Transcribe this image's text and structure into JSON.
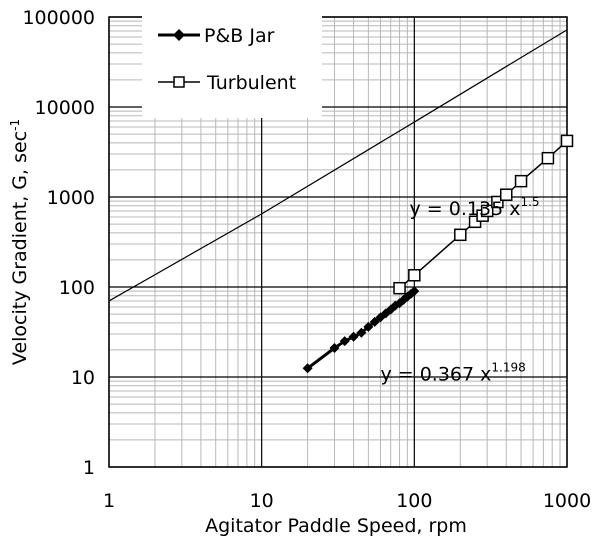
{
  "chart_data": {
    "type": "scatter",
    "xscale": "log",
    "yscale": "log",
    "xlim": [
      1,
      1000
    ],
    "ylim": [
      1,
      100000
    ],
    "xlabel": "Agitator Paddle Speed, rpm",
    "ylabel": "Velocity Gradient, G, sec",
    "ylabel_sup": "-1",
    "xticks": [
      "1",
      "10",
      "100",
      "1000"
    ],
    "yticks": [
      "1",
      "10",
      "100",
      "1000",
      "10000",
      "100000"
    ],
    "grid": "major and minor",
    "legend_position": "top-left",
    "series": [
      {
        "name": "P&B Jar",
        "style": "line-with-filled-diamonds",
        "color": "#000000",
        "x": [
          20,
          30,
          35,
          40,
          45,
          50,
          55,
          60,
          65,
          70,
          75,
          80,
          85,
          90,
          95,
          100
        ],
        "y": [
          12.5,
          21,
          25,
          28,
          31,
          36,
          41,
          46,
          51,
          56,
          62,
          66,
          72,
          78,
          84,
          90
        ]
      },
      {
        "name": "Turbulent",
        "style": "line-with-open-squares",
        "color": "#000000",
        "x": [
          80,
          100,
          200,
          250,
          280,
          300,
          350,
          400,
          500,
          750,
          1000
        ],
        "y": [
          97,
          135,
          380,
          530,
          620,
          700,
          880,
          1060,
          1500,
          2700,
          4200
        ]
      },
      {
        "name": "",
        "style": "line",
        "color": "#000000",
        "x": [
          1,
          10,
          100,
          1000
        ],
        "y": [
          70,
          650,
          6800,
          72000
        ]
      }
    ],
    "annotations": [
      {
        "base": "y = 0.135 x",
        "exponent": "1.5",
        "x": 93,
        "y": 750
      },
      {
        "base": "y = 0.367 x",
        "exponent": "1.198",
        "x": 60,
        "y": 11
      }
    ]
  }
}
